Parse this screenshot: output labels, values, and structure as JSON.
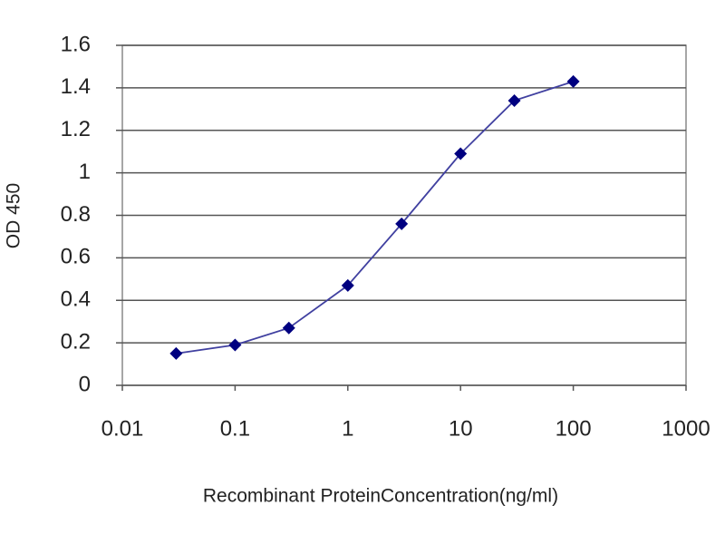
{
  "chart_data": {
    "type": "line",
    "xlabel": "Recombinant ProteinConcentration(ng/ml)",
    "ylabel": "OD 450",
    "x": [
      0.03,
      0.1,
      0.3,
      1,
      3,
      10,
      30,
      100
    ],
    "values": [
      0.15,
      0.19,
      0.27,
      0.47,
      0.76,
      1.09,
      1.34,
      1.43
    ],
    "color": "#4040a0",
    "marker_color": "#000080",
    "xscale": "log",
    "grid": true,
    "xlim": [
      0.01,
      1000
    ],
    "xticks": [
      0.01,
      0.1,
      1,
      10,
      100,
      1000
    ],
    "ylim": [
      0,
      1.6
    ],
    "yticks": [
      0,
      0.2,
      0.4,
      0.6,
      0.8,
      1,
      1.2,
      1.4,
      1.6
    ]
  }
}
